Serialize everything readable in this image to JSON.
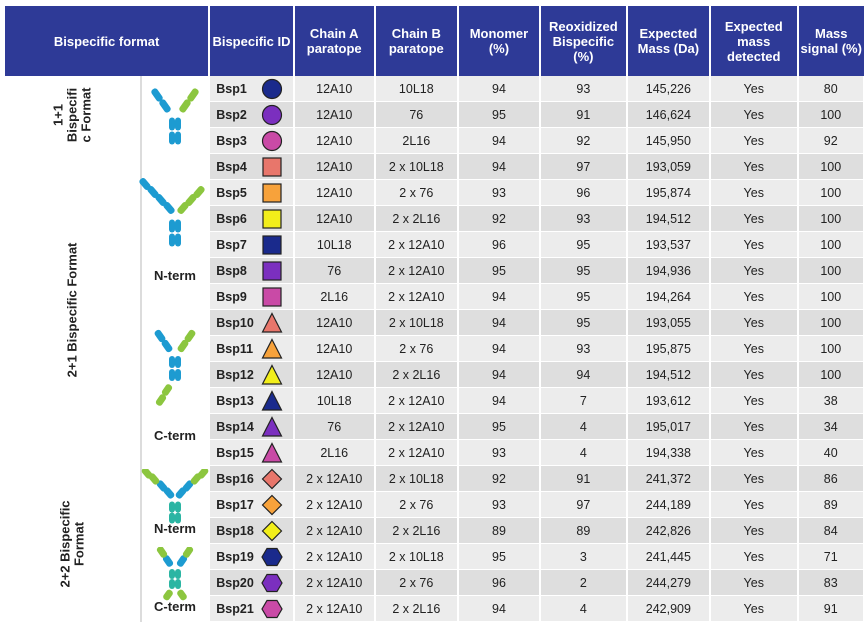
{
  "headers": [
    "Bispecific format",
    "Bispecific ID",
    "Chain A paratope",
    "Chain B paratope",
    "Monomer (%)",
    "Reoxidized Bispecific (%)",
    "Expected Mass (Da)",
    "Expected mass detected",
    "Mass signal (%)"
  ],
  "groups": {
    "g11": {
      "label_lines": [
        "1+1",
        "Bispecifi",
        "c Format"
      ]
    },
    "g21": {
      "label": "2+1 Bispecific Format",
      "nterm": "N-term",
      "cterm": "C-term"
    },
    "g22": {
      "label_lines": [
        "2+2 Bispecific",
        "Format"
      ],
      "nterm": "N-term",
      "cterm": "C-term"
    }
  },
  "colors": {
    "header_bg": "#2e3a97",
    "row_light": "#ececec",
    "row_dark": "#dedede",
    "ab_blue": "#1d9bd1",
    "ab_green": "#8cc63f",
    "ab_teal": "#2bb5a3"
  },
  "rows": [
    {
      "id": "Bsp1",
      "shape": "circle",
      "color": "#1a2a8c",
      "chainA": "12A10",
      "chainB": "10L18",
      "monomer": "94",
      "reox": "93",
      "mass": "145,226",
      "detected": "Yes",
      "signal": "80"
    },
    {
      "id": "Bsp2",
      "shape": "circle",
      "color": "#7b2fbf",
      "chainA": "12A10",
      "chainB": "76",
      "monomer": "95",
      "reox": "91",
      "mass": "146,624",
      "detected": "Yes",
      "signal": "100"
    },
    {
      "id": "Bsp3",
      "shape": "circle",
      "color": "#c94aa6",
      "chainA": "12A10",
      "chainB": "2L16",
      "monomer": "94",
      "reox": "92",
      "mass": "145,950",
      "detected": "Yes",
      "signal": "92"
    },
    {
      "id": "Bsp4",
      "shape": "square",
      "color": "#e8766b",
      "chainA": "12A10",
      "chainB": "2 x 10L18",
      "monomer": "94",
      "reox": "97",
      "mass": "193,059",
      "detected": "Yes",
      "signal": "100"
    },
    {
      "id": "Bsp5",
      "shape": "square",
      "color": "#f7a23b",
      "chainA": "12A10",
      "chainB": "2 x 76",
      "monomer": "93",
      "reox": "96",
      "mass": "195,874",
      "detected": "Yes",
      "signal": "100"
    },
    {
      "id": "Bsp6",
      "shape": "square",
      "color": "#f2ee1a",
      "chainA": "12A10",
      "chainB": "2 x 2L16",
      "monomer": "92",
      "reox": "93",
      "mass": "194,512",
      "detected": "Yes",
      "signal": "100"
    },
    {
      "id": "Bsp7",
      "shape": "square",
      "color": "#1a2a8c",
      "chainA": "10L18",
      "chainB": "2 x 12A10",
      "monomer": "96",
      "reox": "95",
      "mass": "193,537",
      "detected": "Yes",
      "signal": "100"
    },
    {
      "id": "Bsp8",
      "shape": "square",
      "color": "#7b2fbf",
      "chainA": "76",
      "chainB": "2 x 12A10",
      "monomer": "95",
      "reox": "95",
      "mass": "194,936",
      "detected": "Yes",
      "signal": "100"
    },
    {
      "id": "Bsp9",
      "shape": "square",
      "color": "#c94aa6",
      "chainA": "2L16",
      "chainB": "2 x 12A10",
      "monomer": "94",
      "reox": "95",
      "mass": "194,264",
      "detected": "Yes",
      "signal": "100"
    },
    {
      "id": "Bsp10",
      "shape": "triangle",
      "color": "#e8766b",
      "chainA": "12A10",
      "chainB": "2 x 10L18",
      "monomer": "94",
      "reox": "95",
      "mass": "193,055",
      "detected": "Yes",
      "signal": "100"
    },
    {
      "id": "Bsp11",
      "shape": "triangle",
      "color": "#f7a23b",
      "chainA": "12A10",
      "chainB": "2 x 76",
      "monomer": "94",
      "reox": "93",
      "mass": "195,875",
      "detected": "Yes",
      "signal": "100"
    },
    {
      "id": "Bsp12",
      "shape": "triangle",
      "color": "#f2ee1a",
      "chainA": "12A10",
      "chainB": "2 x 2L16",
      "monomer": "94",
      "reox": "94",
      "mass": "194,512",
      "detected": "Yes",
      "signal": "100"
    },
    {
      "id": "Bsp13",
      "shape": "triangle",
      "color": "#1a2a8c",
      "chainA": "10L18",
      "chainB": "2 x 12A10",
      "monomer": "94",
      "reox": "7",
      "mass": "193,612",
      "detected": "Yes",
      "signal": "38"
    },
    {
      "id": "Bsp14",
      "shape": "triangle",
      "color": "#7b2fbf",
      "chainA": "76",
      "chainB": "2 x 12A10",
      "monomer": "95",
      "reox": "4",
      "mass": "195,017",
      "detected": "Yes",
      "signal": "34"
    },
    {
      "id": "Bsp15",
      "shape": "triangle",
      "color": "#c94aa6",
      "chainA": "2L16",
      "chainB": "2 x 12A10",
      "monomer": "93",
      "reox": "4",
      "mass": "194,338",
      "detected": "Yes",
      "signal": "40"
    },
    {
      "id": "Bsp16",
      "shape": "diamond",
      "color": "#e8766b",
      "chainA": "2 x 12A10",
      "chainB": "2 x 10L18",
      "monomer": "92",
      "reox": "91",
      "mass": "241,372",
      "detected": "Yes",
      "signal": "86"
    },
    {
      "id": "Bsp17",
      "shape": "diamond",
      "color": "#f7a23b",
      "chainA": "2 x 12A10",
      "chainB": "2 x 76",
      "monomer": "93",
      "reox": "97",
      "mass": "244,189",
      "detected": "Yes",
      "signal": "89"
    },
    {
      "id": "Bsp18",
      "shape": "diamond",
      "color": "#f2ee1a",
      "chainA": "2 x 12A10",
      "chainB": "2 x 2L16",
      "monomer": "89",
      "reox": "89",
      "mass": "242,826",
      "detected": "Yes",
      "signal": "84"
    },
    {
      "id": "Bsp19",
      "shape": "hexagon",
      "color": "#1a2a8c",
      "chainA": "2 x 12A10",
      "chainB": "2 x 10L18",
      "monomer": "95",
      "reox": "3",
      "mass": "241,445",
      "detected": "Yes",
      "signal": "71"
    },
    {
      "id": "Bsp20",
      "shape": "hexagon",
      "color": "#7b2fbf",
      "chainA": "2 x 12A10",
      "chainB": "2 x 76",
      "monomer": "96",
      "reox": "2",
      "mass": "244,279",
      "detected": "Yes",
      "signal": "83"
    },
    {
      "id": "Bsp21",
      "shape": "hexagon",
      "color": "#c94aa6",
      "chainA": "2 x 12A10",
      "chainB": "2 x 2L16",
      "monomer": "94",
      "reox": "4",
      "mass": "242,909",
      "detected": "Yes",
      "signal": "91"
    }
  ]
}
